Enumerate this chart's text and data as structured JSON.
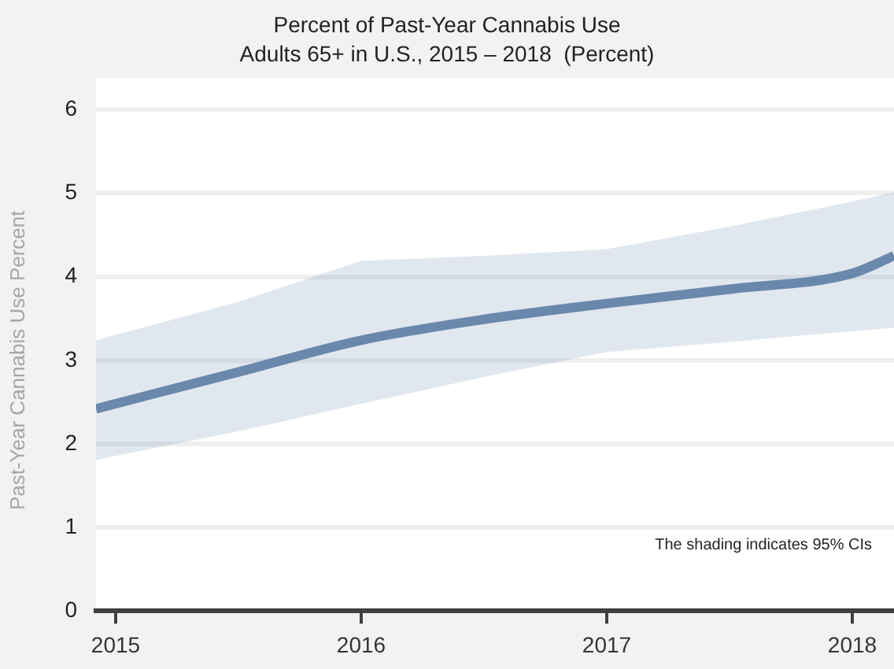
{
  "chart_data": {
    "type": "line",
    "title": "Percent of Past-Year Cannabis Use",
    "subtitle": "Adults 65+ in U.S., 2015 – 2018  (Percent)",
    "ylabel": "Past-Year Cannabis Use Percent",
    "x": [
      2014.92,
      2015.5,
      2016,
      2016.5,
      2017,
      2017.5,
      2018,
      2018.17
    ],
    "series": [
      {
        "color": "#6a88ab",
        "values": [
          2.42,
          2.86,
          3.24,
          3.49,
          3.68,
          3.85,
          4.04,
          4.25
        ],
        "lower": [
          1.81,
          2.15,
          2.48,
          2.8,
          3.1,
          3.22,
          3.35,
          3.39
        ],
        "upper": [
          3.24,
          3.7,
          4.19,
          4.25,
          4.33,
          4.6,
          4.9,
          5.01
        ]
      }
    ],
    "xlim": [
      2014.92,
      2018.17
    ],
    "xticks": [
      2015,
      2016,
      2017,
      2018
    ],
    "ylim": [
      0,
      6
    ],
    "yticks": [
      0,
      1,
      2,
      3,
      4,
      5,
      6
    ],
    "grid": "y",
    "legend": false,
    "marker": "none",
    "line_style": "solid",
    "annotations": [
      "The shading indicates 95% CIs"
    ]
  }
}
